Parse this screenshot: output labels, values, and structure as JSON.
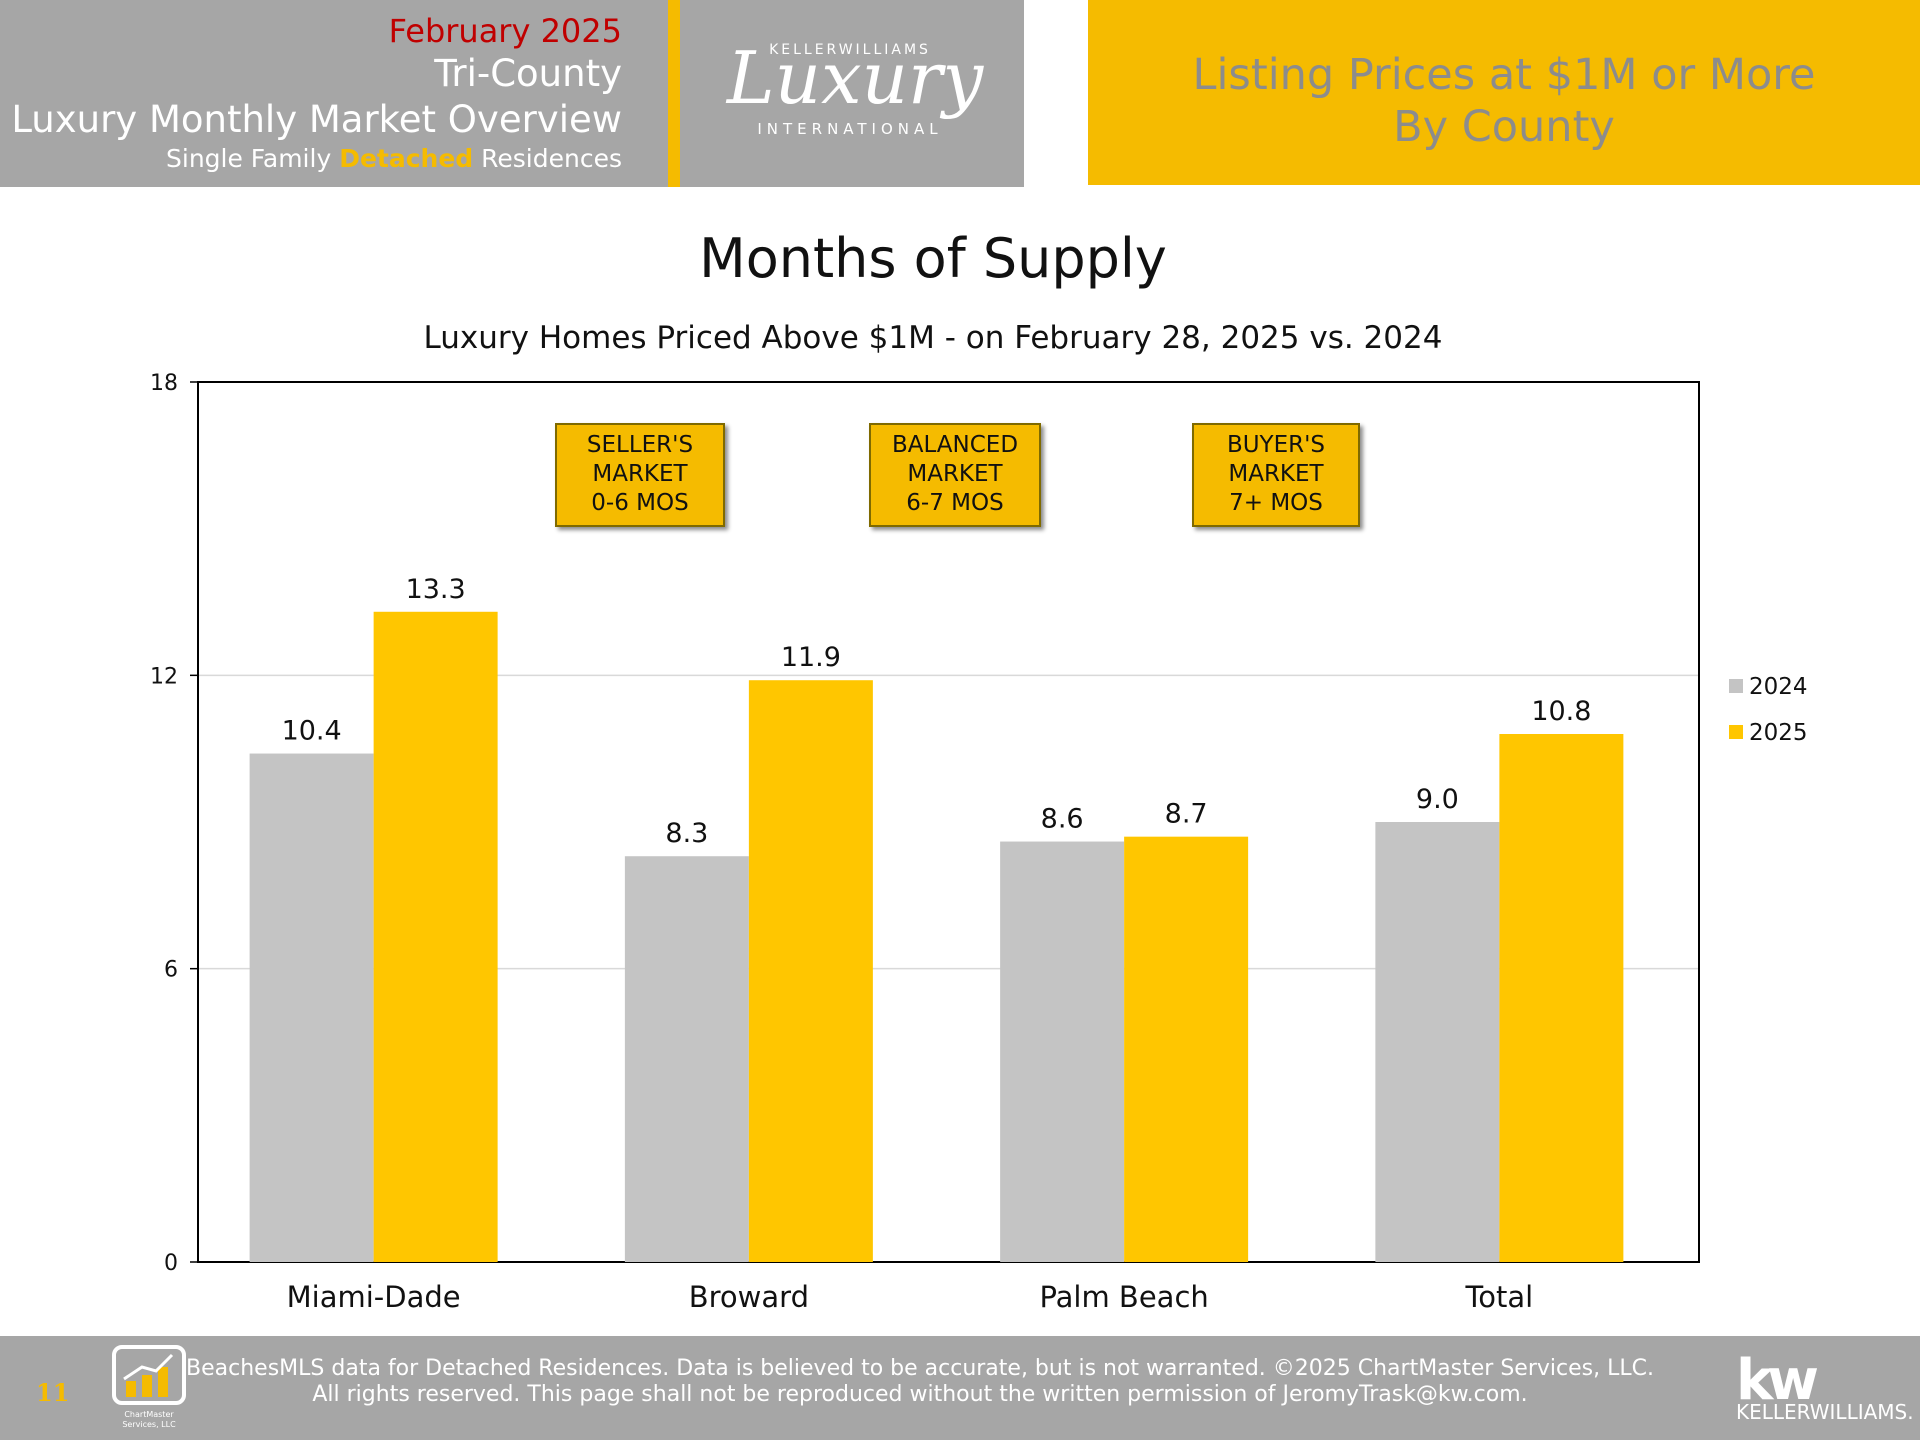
{
  "header": {
    "month": "February 2025",
    "region": "Tri-County",
    "title": "Luxury Monthly Market Overview",
    "subtitle_pre": "Single Family ",
    "subtitle_highlight": "Detached",
    "subtitle_post": " Residences",
    "logo_top": "KELLERWILLIAMS",
    "logo_main": "Luxury",
    "logo_bottom": "INTERNATIONAL",
    "right_line1": "Listing Prices at $1M or More",
    "right_line2": "By County"
  },
  "markers": {
    "seller": [
      "SELLER'S",
      "MARKET",
      "0-6 MOS"
    ],
    "balanced": [
      "BALANCED",
      "MARKET",
      "6-7 MOS"
    ],
    "buyer": [
      "BUYER'S",
      "MARKET",
      "7+ MOS"
    ]
  },
  "footer": {
    "page_number": "11",
    "line1": "BeachesMLS data for Detached Residences.  Data is believed to be accurate, but is not warranted.   ©2025  ChartMaster Services, LLC.",
    "line2": "All rights reserved. This page shall not be reproduced without the written permission of JeromyTrask@kw.com.",
    "cm_logo_text": "ChartMaster Services, LLC",
    "kw_mark": "kw",
    "kw_text": "KELLERWILLIAMS."
  },
  "colors": {
    "gray": "#a6a6a6",
    "gold": "#f5bb00",
    "bar2024": "#c4c4c4",
    "bar2025": "#ffc600",
    "red": "#c00000"
  },
  "chart_data": {
    "type": "bar",
    "title": "Months of Supply",
    "subtitle": "Luxury Homes Priced Above $1M - on February 28,  2025 vs. 2024",
    "categories": [
      "Miami-Dade",
      "Broward",
      "Palm Beach",
      "Total"
    ],
    "series": [
      {
        "name": "2024",
        "values": [
          10.4,
          8.3,
          8.6,
          9.0
        ],
        "labels": [
          "10.4",
          "8.3",
          "8.6",
          "9.0"
        ]
      },
      {
        "name": "2025",
        "values": [
          13.3,
          11.9,
          8.7,
          10.8
        ],
        "labels": [
          "13.3",
          "11.9",
          "8.7",
          "10.8"
        ]
      }
    ],
    "ylim": [
      0,
      18
    ],
    "yticks": [
      0,
      6,
      12,
      18
    ],
    "grid": true,
    "legend_position": "right"
  }
}
